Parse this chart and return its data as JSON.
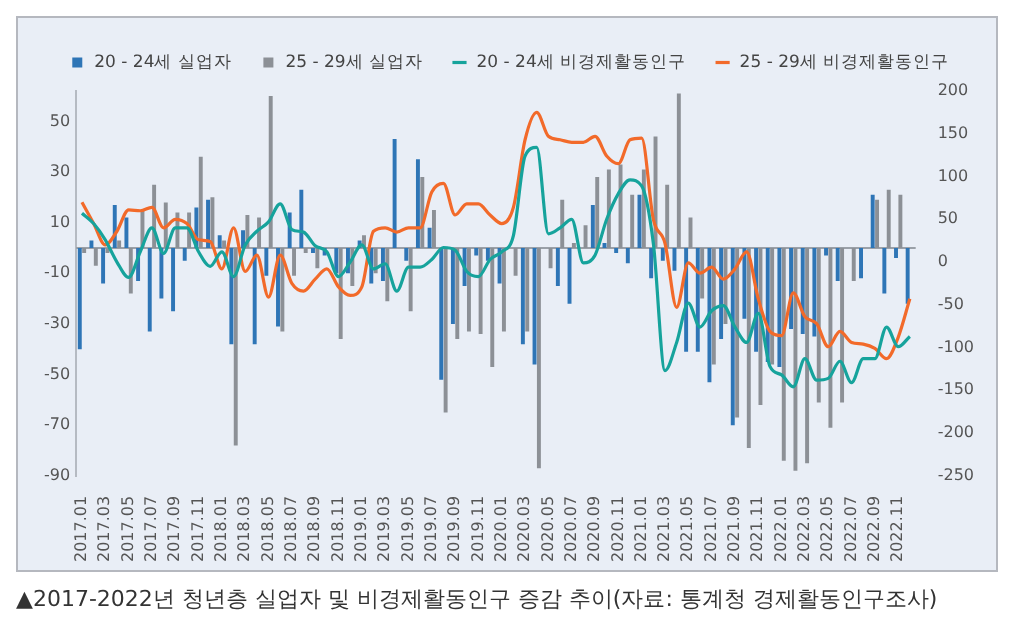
{
  "chart_data": {
    "type": "bar",
    "title": "▲2017-2022년 청년층 실업자 및 비경제활동인구 증감 추이(자료: 통계청 경제활동인구조사)",
    "categories": [
      "2017.01",
      null,
      "2017.03",
      null,
      "2017.05",
      null,
      "2017.07",
      null,
      "2017.09",
      null,
      "2017.11",
      null,
      "2018.01",
      null,
      "2018.03",
      null,
      "2018.05",
      null,
      "2018.07",
      null,
      "2018.09",
      null,
      "2018.11",
      null,
      "2019.01",
      null,
      "2019.03",
      null,
      "2019.05",
      null,
      "2019.07",
      null,
      "2019.09",
      null,
      "2019.11",
      null,
      "2020.01",
      null,
      "2020.03",
      null,
      "2020.05",
      null,
      "2020.07",
      null,
      "2020.09",
      null,
      "2020.11",
      null,
      "2021.01",
      null,
      "2021.03",
      null,
      "2021.05",
      null,
      "2021.07",
      null,
      "2021.09",
      null,
      "2021.11",
      null,
      "2022.01",
      null,
      "2022.03",
      null,
      "2022.05",
      null,
      "2022.07",
      null,
      "2022.09",
      null,
      "2022.11",
      null
    ],
    "series": [
      {
        "name": "20 - 24세 실업자",
        "color": "#2e75b6",
        "values": [
          -40,
          3,
          -14,
          17,
          12,
          -13,
          -33,
          -20,
          -25,
          -5,
          16,
          19,
          5,
          -38,
          7,
          -38,
          -11,
          -31,
          14,
          23,
          -2,
          -3,
          -10,
          -10,
          3,
          -14,
          -13,
          43,
          -5,
          35,
          8,
          -52,
          -30,
          -15,
          -3,
          -5,
          -14,
          0,
          -38,
          -46,
          0,
          -15,
          -22,
          0,
          17,
          2,
          -2,
          -6,
          21,
          -12,
          -5,
          -9,
          -41,
          -41,
          -53,
          -36,
          -70,
          -28,
          -41,
          -45,
          -47,
          -32,
          -34,
          -35,
          -3,
          -13,
          0,
          -12,
          21,
          -18,
          -4,
          -22
        ]
      },
      {
        "name": "25 - 29세 실업자",
        "color": "#8c9096",
        "values": [
          -2,
          -7,
          -2,
          3,
          -18,
          15,
          25,
          18,
          14,
          14,
          36,
          20,
          3,
          -78,
          13,
          12,
          60,
          -33,
          -11,
          -2,
          -8,
          0,
          -36,
          -15,
          5,
          -10,
          -21,
          0,
          -25,
          28,
          15,
          -65,
          -36,
          -33,
          -34,
          -47,
          -33,
          -11,
          -33,
          -87,
          -8,
          19,
          2,
          9,
          28,
          31,
          33,
          21,
          31,
          44,
          25,
          61,
          12,
          -20,
          -46,
          -30,
          -67,
          -79,
          -62,
          -46,
          -84,
          -88,
          -85,
          -61,
          -71,
          -61,
          -13,
          0,
          19,
          23,
          21,
          0
        ]
      },
      {
        "name": "20 - 24세 비경제활동인구",
        "type": "line",
        "axis": "y2",
        "color": "#16a39c",
        "values": [
          57,
          45,
          26,
          0,
          -18,
          12,
          40,
          10,
          40,
          40,
          12,
          -5,
          12,
          -17,
          20,
          36,
          47,
          68,
          38,
          35,
          19,
          12,
          -17,
          0,
          20,
          -8,
          -2,
          -34,
          -6,
          -6,
          3,
          17,
          14,
          -11,
          -17,
          3,
          12,
          31,
          124,
          134,
          33,
          40,
          50,
          -1,
          8,
          50,
          80,
          96,
          89,
          22,
          -127,
          -94,
          -48,
          -76,
          -57,
          -51,
          -76,
          -94,
          -60,
          -122,
          -132,
          -146,
          -113,
          -138,
          -136,
          -116,
          -141,
          -113,
          -113,
          -76,
          -99,
          -87
        ]
      },
      {
        "name": "25 - 29세 비경제활동인구",
        "type": "line",
        "axis": "y2",
        "color": "#f26a2a",
        "values": [
          70,
          45,
          20,
          36,
          61,
          60,
          64,
          40,
          50,
          45,
          26,
          24,
          -8,
          40,
          -11,
          8,
          -41,
          8,
          -25,
          -34,
          -20,
          -8,
          -29,
          -39,
          -29,
          36,
          40,
          35,
          40,
          40,
          82,
          92,
          55,
          68,
          68,
          55,
          45,
          64,
          143,
          175,
          147,
          143,
          140,
          140,
          147,
          124,
          115,
          143,
          145,
          50,
          22,
          -53,
          -1,
          -13,
          -6,
          -20,
          -8,
          12,
          -43,
          -81,
          -86,
          -36,
          -64,
          -72,
          -99,
          -81,
          -94,
          -96,
          -101,
          -113,
          -88,
          -43
        ]
      }
    ],
    "ylim": [
      -90,
      62
    ],
    "yticks": [
      50,
      30,
      10,
      -10,
      -30,
      -50,
      -70,
      -90
    ],
    "y2lim": [
      -250,
      200
    ],
    "y2ticks": [
      200,
      150,
      100,
      50,
      0,
      -50,
      -100,
      -150,
      -200,
      -250
    ],
    "legend": "top"
  }
}
